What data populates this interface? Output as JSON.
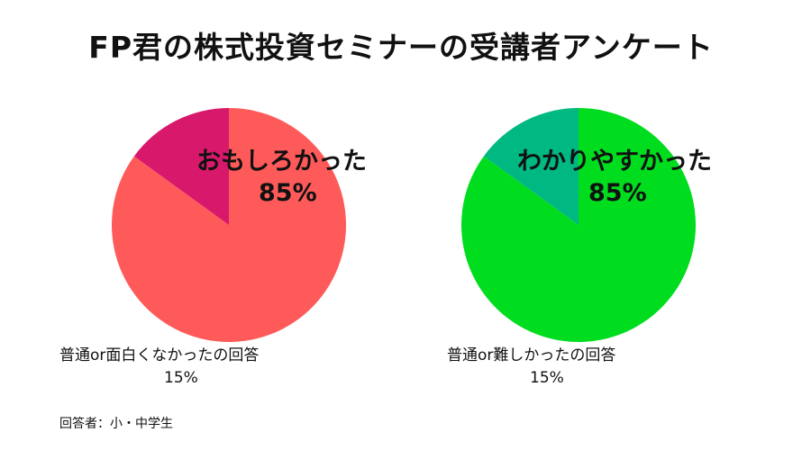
{
  "title": "FP君の株式投資セミナーの受講者アンケート",
  "footnote": "回答者：小・中学生",
  "colors": {
    "fun_major": "#ff5a5a",
    "fun_minor": "#d8196b",
    "clear_major": "#00dc1e",
    "clear_minor": "#00b881"
  },
  "chart_data": [
    {
      "type": "pie",
      "slices": [
        {
          "label": "おもしろかった",
          "value": 85,
          "value_label": "85%"
        },
        {
          "label": "普通or面白くなかったの回答",
          "value": 15,
          "value_label": "15%"
        }
      ]
    },
    {
      "type": "pie",
      "slices": [
        {
          "label": "わかりやすかった",
          "value": 85,
          "value_label": "85%"
        },
        {
          "label": "普通or難しかったの回答",
          "value": 15,
          "value_label": "15%"
        }
      ]
    }
  ]
}
